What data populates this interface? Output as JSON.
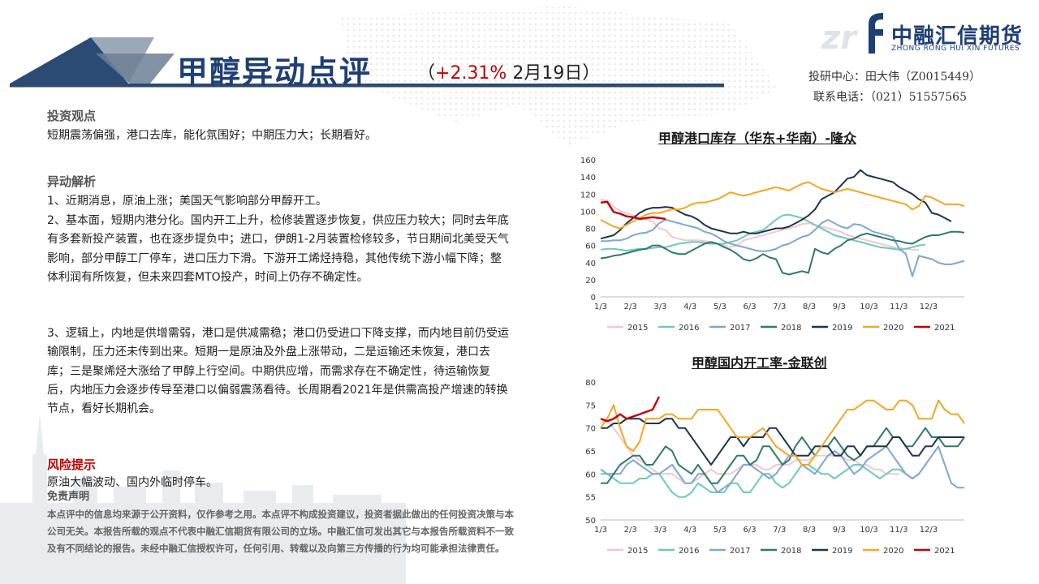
{
  "header": {
    "title": "甲醇异动点评",
    "change_pct": "+2.31%",
    "date": "2月19日"
  },
  "logo": {
    "cn": "中融汇信期货",
    "en": "ZHONG RONG HUI XIN FUTURES"
  },
  "contact": {
    "analyst": "投研中心：田大伟（Z0015449）",
    "phone": "联系电话：（021）51557565"
  },
  "sections": {
    "view_title": "投资观点",
    "view_text": "短期震荡偏强，港口去库，能化氛围好；中期压力大；长期看好。",
    "analysis_title": "异动解析",
    "analysis_p1": "1、近期消息，原油上涨；美国天气影响部分甲醇开工。",
    "analysis_p2": "2、基本面，短期内港分化。国内开工上升，检修装置逐步恢复，供应压力较大；同时去年底有多套新投产装置，也在逐步提负中；进口，伊朗1-2月装置检修较多，节日期间北美受天气影响，部分甲醇工厂停车，进口压力下滑。下游开工烯烃持稳，其他传统下游小幅下降；整体利润有所恢复，但未来四套MTO投产，时间上仍存不确定性。",
    "analysis_p3": "3、逻辑上，内地是供增需弱，港口是供减需稳；港口仍受进口下降支撑，而内地目前仍受运输限制，压力还未传到出来。短期一是原油及外盘上涨带动，二是运输还未恢复，港口去库；三是聚烯烃大涨给了甲醇上行空间。中期供应增，而需求存在不确定性，待运输恢复后，内地压力会逐步传导至港口以偏弱震荡看待。长周期看2021年是供需高投产增速的转换节点，看好长期机会。",
    "risk_title": "风险提示",
    "risk_text": "原油大幅波动、国内外临时停车。",
    "disclaimer_title": "免责声明",
    "disclaimer_text": "本点评中的信息均来源于公开资料，仅作参考之用。本点评不构成投资建议，投资者据此做出的任何投资决策与本公司无关。本报告所载的观点不代表中融汇信期货有限公司的立场。中融汇信可发出其它与本报告所载资料不一致及有不同结论的报告。未经中融汇信授权许可，任何引用、转载以及向第三方传播的行为均可能承担法律责任。"
  },
  "chart_data": [
    {
      "type": "line",
      "title": "甲醇港口库存（华东+华南）-隆众",
      "x_ticks": [
        "1/3",
        "2/3",
        "3/3",
        "4/3",
        "5/3",
        "6/3",
        "7/3",
        "8/3",
        "9/3",
        "10/3",
        "11/3",
        "12/3"
      ],
      "ylim": [
        0,
        160
      ],
      "y_ticks": [
        0,
        20,
        40,
        60,
        80,
        100,
        120,
        140,
        160
      ],
      "legend_position": "bottom",
      "series": [
        {
          "name": "2015",
          "color": "#f4c7cf",
          "values": [
            114,
            112,
            105,
            100,
            98,
            95,
            93,
            90,
            88,
            80,
            78,
            70,
            68,
            66,
            66,
            66,
            65,
            64,
            62,
            60,
            58,
            60,
            66,
            68,
            70,
            72,
            74,
            76,
            78,
            80,
            82,
            85,
            86,
            84,
            82,
            80,
            78,
            76,
            72,
            70,
            68,
            66,
            64,
            62,
            60,
            58,
            57,
            56,
            55,
            55
          ]
        },
        {
          "name": "2016",
          "color": "#6ccbb7",
          "values": [
            55,
            56,
            56,
            55,
            54,
            55,
            56,
            56,
            57,
            58,
            58,
            60,
            62,
            63,
            64,
            64,
            63,
            62,
            62,
            62,
            64,
            66,
            70,
            74,
            76,
            78,
            84,
            90,
            95,
            96,
            94,
            92,
            88,
            84,
            80,
            76,
            72,
            70,
            68,
            66,
            64,
            62,
            60,
            58,
            57,
            56,
            55,
            56,
            58,
            60,
            61
          ]
        },
        {
          "name": "2017",
          "color": "#7ea6d3",
          "values": [
            65,
            65,
            66,
            66,
            68,
            72,
            74,
            75,
            78,
            86,
            90,
            88,
            86,
            84,
            82,
            80,
            76,
            74,
            70,
            65,
            62,
            60,
            58,
            56,
            54,
            53,
            54,
            56,
            60,
            62,
            66,
            70,
            72,
            78,
            86,
            90,
            86,
            82,
            80,
            85,
            84,
            80,
            76,
            74,
            72,
            70,
            56,
            50,
            24,
            48,
            46,
            44,
            40,
            38,
            38,
            40,
            42
          ]
        },
        {
          "name": "2018",
          "color": "#2f7a6b",
          "values": [
            45,
            46,
            48,
            49,
            51,
            53,
            55,
            56,
            60,
            60,
            56,
            52,
            50,
            50,
            54,
            58,
            62,
            64,
            62,
            58,
            55,
            50,
            44,
            42,
            45,
            50,
            46,
            44,
            28,
            26,
            28,
            30,
            28,
            56,
            52,
            50,
            56,
            60,
            66,
            68,
            72,
            74,
            72,
            70,
            68,
            66,
            65,
            63,
            62,
            66,
            70,
            72,
            72,
            74,
            76,
            76,
            75
          ]
        },
        {
          "name": "2019",
          "color": "#1e3451",
          "values": [
            68,
            70,
            72,
            78,
            86,
            92,
            98,
            102,
            104,
            104,
            105,
            104,
            100,
            96,
            94,
            90,
            84,
            80,
            78,
            76,
            74,
            74,
            76,
            74,
            74,
            76,
            78,
            80,
            80,
            82,
            86,
            90,
            95,
            102,
            114,
            118,
            122,
            130,
            138,
            140,
            148,
            142,
            140,
            138,
            136,
            134,
            128,
            124,
            120,
            114,
            110,
            98,
            96,
            92,
            88
          ]
        },
        {
          "name": "2020",
          "color": "#f5a623",
          "values": [
            90,
            86,
            82,
            80,
            84,
            88,
            92,
            96,
            98,
            98,
            100,
            102,
            102,
            104,
            108,
            110,
            110,
            112,
            114,
            118,
            122,
            120,
            118,
            120,
            122,
            124,
            126,
            128,
            126,
            124,
            128,
            132,
            134,
            130,
            126,
            124,
            122,
            124,
            126,
            124,
            122,
            120,
            118,
            116,
            114,
            112,
            110,
            108,
            102,
            106,
            118,
            116,
            112,
            108,
            108,
            108,
            106
          ]
        },
        {
          "name": "2021",
          "color": "#c00000",
          "values": [
            110,
            111,
            99,
            97,
            94,
            93,
            91,
            92,
            93,
            92,
            91
          ]
        }
      ]
    },
    {
      "type": "line",
      "title": "甲醇国内开工率-金联创",
      "x_ticks": [
        "1/3",
        "2/3",
        "3/3",
        "4/3",
        "5/3",
        "6/3",
        "7/3",
        "8/3",
        "9/3",
        "10/3",
        "11/3",
        "12/3"
      ],
      "ylim": [
        50,
        80
      ],
      "y_ticks": [
        50,
        55,
        60,
        65,
        70,
        75,
        80
      ],
      "legend_position": "bottom",
      "series": [
        {
          "name": "2015",
          "color": "#f4c7cf",
          "values": [
            71,
            72,
            70,
            68,
            66,
            64,
            63,
            62,
            61,
            60,
            60,
            60,
            59,
            58,
            58,
            59,
            60,
            61,
            60,
            60,
            60,
            61,
            62,
            62,
            62,
            61,
            61,
            62,
            62,
            62,
            63,
            63,
            63,
            64,
            64,
            64,
            64,
            64,
            63,
            63,
            62,
            62,
            61,
            61,
            60,
            60,
            60
          ]
        },
        {
          "name": "2016",
          "color": "#6ccbb7",
          "values": [
            60,
            60,
            59,
            58,
            58,
            58,
            59,
            59,
            60,
            60,
            58,
            56,
            55,
            55,
            56,
            58,
            57,
            56,
            56,
            56,
            58,
            58,
            56,
            56,
            58,
            60,
            60,
            58,
            57,
            58,
            60,
            62,
            62,
            61,
            60,
            60,
            59,
            60,
            61,
            62,
            62,
            61,
            60,
            59,
            60,
            61,
            61,
            60,
            59,
            60
          ]
        },
        {
          "name": "2017",
          "color": "#7ea6d3",
          "values": [
            61,
            60,
            60,
            60,
            62,
            63,
            62,
            61,
            60,
            60,
            61,
            62,
            60,
            58,
            58,
            60,
            60,
            58,
            56,
            57,
            58,
            60,
            62,
            62,
            61,
            60,
            59,
            60,
            62,
            64,
            64,
            62,
            61,
            60,
            62,
            64,
            65,
            64,
            62,
            60,
            61,
            63,
            64,
            65,
            66,
            64,
            62,
            60,
            59,
            60,
            62,
            64,
            66,
            62,
            58,
            57,
            57
          ]
        },
        {
          "name": "2018",
          "color": "#2f7a6b",
          "values": [
            58,
            58,
            60,
            62,
            63,
            64,
            64,
            62,
            62,
            64,
            66,
            65,
            62,
            61,
            60,
            62,
            60,
            58,
            58,
            60,
            62,
            64,
            64,
            62,
            63,
            66,
            66,
            64,
            62,
            63,
            66,
            68,
            66,
            64,
            66,
            66,
            68,
            66,
            64,
            63,
            64,
            66,
            66,
            68,
            70,
            68,
            68,
            66,
            66,
            68,
            70,
            68,
            68,
            66,
            66,
            66,
            68
          ]
        },
        {
          "name": "2019",
          "color": "#1e3451",
          "values": [
            70,
            70,
            71,
            71,
            72,
            72,
            72,
            71,
            71,
            71,
            72,
            72,
            70,
            70,
            68,
            66,
            64,
            62,
            64,
            66,
            68,
            68,
            66,
            68,
            68,
            68,
            70,
            70,
            68,
            66,
            64,
            64,
            64,
            66,
            66,
            66,
            64,
            64,
            66,
            66,
            64,
            66,
            66,
            66,
            66,
            68,
            68,
            66,
            64,
            64,
            66,
            66,
            68,
            68,
            68,
            68,
            68
          ]
        },
        {
          "name": "2020",
          "color": "#f5a623",
          "values": [
            70,
            72,
            75,
            70,
            66,
            65,
            67,
            72,
            72,
            72,
            73,
            73,
            72,
            72,
            72,
            74,
            74,
            74,
            74,
            72,
            70,
            68,
            68,
            68,
            69,
            70,
            68,
            66,
            65,
            64,
            64,
            62,
            62,
            64,
            66,
            68,
            70,
            72,
            74,
            74,
            75,
            76,
            76,
            75,
            74,
            74,
            76,
            76,
            75,
            72,
            72,
            72,
            76,
            74,
            73,
            73,
            71
          ]
        },
        {
          "name": "2021",
          "color": "#c00000",
          "values": [
            72,
            71.5,
            72,
            73,
            72,
            72.5,
            73,
            73.5,
            74,
            76.8
          ]
        }
      ]
    }
  ]
}
